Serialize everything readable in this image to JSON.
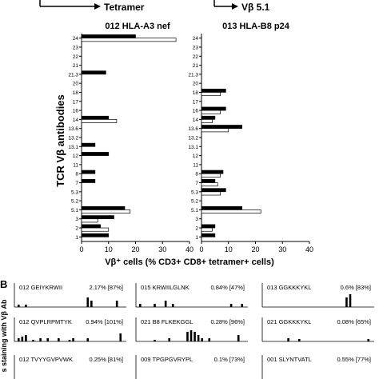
{
  "arrows": {
    "left_label": "Tetramer",
    "right_label": "Vβ 5.1"
  },
  "panel_a": {
    "ylabel": "TCR Vβ antibodies",
    "xlabel": "Vβ⁺ cells (% CD3+ CD8+ tetramer+ cells)",
    "categories": [
      "24",
      "23",
      "22",
      "21",
      "21.3",
      "20",
      "18",
      "17",
      "16",
      "14",
      "13.6",
      "13.2",
      "13.1",
      "12",
      "11",
      "8",
      "7",
      "5.3",
      "5.2",
      "5.1",
      "3",
      "2",
      "1"
    ],
    "x_ticks": [
      0,
      10,
      20,
      30,
      40
    ]
  },
  "panel_b": {
    "label": "B",
    "ylabel_partial": "s staining with Vβ Ab",
    "cells": [
      {
        "id": "012",
        "peptide": "GEIYKRWII",
        "pct": "2.17% [87%]"
      },
      {
        "id": "015",
        "peptide": "KRWIILGLNK",
        "pct": "0.84% [47%]"
      },
      {
        "id": "013",
        "peptide": "GGKKKYKL",
        "pct": "0.6% [83%]"
      },
      {
        "id": "012",
        "peptide": "QVPLRPMTYK",
        "pct": "0.94% [101%]"
      },
      {
        "id": "021",
        "peptide": "B8 FLKEKGGL",
        "pct": "0.28% [96%]"
      },
      {
        "id": "021",
        "peptide": "GGKKKYKL",
        "pct": "0.08% [65%]"
      },
      {
        "id": "012",
        "peptide": "TVYYGVPVWK",
        "pct": "0.25% [81%]"
      },
      {
        "id": "009",
        "peptide": "TPGPGVRYPL",
        "pct": "0.1% [73%]"
      },
      {
        "id": "001",
        "peptide": "SLYNTVATL",
        "pct": "0.55% [77%]"
      }
    ]
  },
  "chart_data": [
    {
      "type": "bar",
      "title": "012 HLA-A3 nef",
      "orientation": "horizontal",
      "categories": [
        "24",
        "23",
        "22",
        "21",
        "21.3",
        "20",
        "18",
        "17",
        "16",
        "14",
        "13.6",
        "13.2",
        "13.1",
        "12",
        "11",
        "8",
        "7",
        "5.3",
        "5.2",
        "5.1",
        "3",
        "2",
        "1"
      ],
      "series": [
        {
          "values": [
            20,
            0,
            0,
            0,
            9,
            0,
            0,
            0,
            0,
            10,
            0,
            0,
            5,
            10,
            0,
            5,
            5,
            0,
            0,
            16,
            12,
            7,
            10
          ],
          "color": "#000000"
        },
        {
          "values": [
            35,
            0,
            0,
            0,
            0,
            0,
            0,
            0,
            0,
            13,
            0,
            0,
            0,
            0,
            0,
            0,
            0,
            0,
            0,
            18,
            6,
            10,
            0
          ],
          "color": "#ffffff"
        }
      ],
      "xlim": [
        0,
        40
      ],
      "xlabel": "Vβ⁺ cells (% CD3+ CD8+ tetramer+ cells)",
      "ylabel": "TCR Vβ antibodies"
    },
    {
      "type": "bar",
      "title": "013 HLA-B8 p24",
      "orientation": "horizontal",
      "categories": [
        "24",
        "23",
        "22",
        "21",
        "21.3",
        "20",
        "18",
        "17",
        "16",
        "14",
        "13.6",
        "13.2",
        "13.1",
        "12",
        "11",
        "8",
        "7",
        "5.3",
        "5.2",
        "5.1",
        "3",
        "2",
        "1"
      ],
      "series": [
        {
          "values": [
            0,
            0,
            0,
            0,
            0,
            0,
            9,
            0,
            9,
            5,
            15,
            0,
            0,
            0,
            0,
            8,
            5,
            9,
            0,
            15,
            0,
            5,
            5
          ],
          "color": "#000000"
        },
        {
          "values": [
            0,
            0,
            0,
            0,
            0,
            0,
            7,
            0,
            7,
            4,
            10,
            0,
            0,
            0,
            0,
            7,
            6,
            7,
            0,
            22,
            0,
            4,
            0
          ],
          "color": "#ffffff"
        }
      ],
      "xlim": [
        0,
        40
      ],
      "xlabel": "Vβ⁺ cells (% CD3+ CD8+ tetramer+ cells)"
    },
    {
      "type": "bar",
      "title": "",
      "grid": "3x3",
      "cells": [
        {
          "values": [
            0.15,
            0,
            0.15,
            0,
            0,
            0,
            0,
            0,
            0,
            0,
            0,
            0,
            0,
            0,
            0,
            0,
            0,
            0,
            0,
            0.6,
            0.4,
            0,
            0,
            0,
            0,
            0,
            0,
            0.4,
            0
          ]
        },
        {
          "values": [
            0.2,
            0,
            0,
            0,
            0.2,
            0,
            0,
            0.4,
            0,
            0.2,
            0,
            0,
            0,
            0,
            0,
            0,
            0,
            0,
            0,
            0,
            0,
            0,
            0,
            0,
            0,
            0.2,
            0,
            0,
            0.2
          ]
        },
        {
          "values": [
            0,
            0,
            0,
            0,
            0,
            0,
            0,
            0,
            0,
            0,
            0,
            0,
            0,
            0,
            0,
            0,
            0,
            0,
            0,
            0,
            0,
            0,
            0.6,
            0.8,
            0,
            0,
            0,
            0,
            0
          ]
        },
        {
          "values": [
            0.2,
            0.3,
            0.4,
            0,
            0.1,
            0,
            0.2,
            0,
            0.2,
            0,
            0,
            0.2,
            0,
            0,
            0.1,
            0.2,
            0,
            0,
            0,
            0.2,
            0,
            0,
            0,
            0,
            0,
            0,
            0,
            0,
            0.5
          ]
        },
        {
          "values": [
            0,
            0,
            0,
            0,
            0.1,
            0,
            0,
            0,
            0.2,
            0,
            0,
            0,
            0,
            0.6,
            0.7,
            0.6,
            0.4,
            0.2,
            0,
            0.2,
            0,
            0,
            0,
            0,
            0,
            0,
            0,
            0.4,
            0
          ]
        },
        {
          "values": [
            0,
            0,
            0,
            0,
            0,
            0,
            0.2,
            0,
            0,
            0.15,
            0,
            0,
            0,
            0,
            0,
            0,
            0,
            0,
            0,
            0,
            0,
            0,
            0,
            0,
            0,
            0,
            0,
            0,
            0.15
          ]
        },
        {
          "values": []
        },
        {
          "values": []
        },
        {
          "values": []
        }
      ]
    }
  ]
}
